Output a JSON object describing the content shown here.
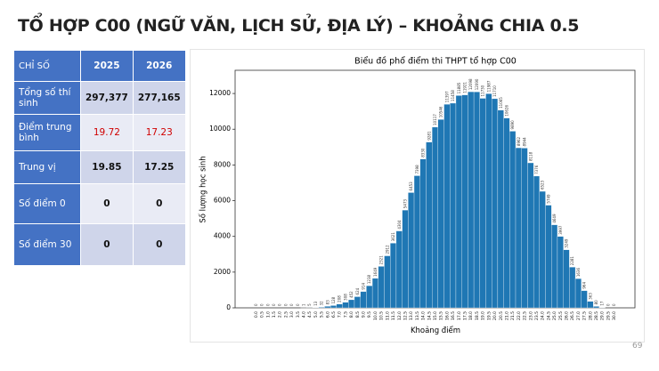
{
  "title": "TỔ HỢP C00 (NGỮ VĂN, LỊCH SỬ, ĐỊA LÝ) – KHOẢNG CHIA 0.5",
  "table": {
    "header": [
      "CHỈ SỐ",
      "2025",
      "2026"
    ],
    "rows": [
      [
        "Tổng số thí sinh",
        "297,377",
        "277,165"
      ],
      [
        "Điểm trung bình",
        "19.72",
        "17.23"
      ],
      [
        "Trung vị",
        "19.85",
        "17.25"
      ],
      [
        "Số điểm 0",
        "0",
        "0"
      ],
      [
        "Số điểm 30",
        "0",
        "0"
      ]
    ]
  },
  "chart_data": {
    "type": "bar",
    "title": "Biểu đồ phổ điểm thi THPT tổ hợp C00",
    "x_label": "Khoảng điểm",
    "y_label": "Số lượng học sinh",
    "categories": [
      "0.0",
      "0.5",
      "1.0",
      "1.5",
      "2.0",
      "2.5",
      "3.0",
      "3.5",
      "4.0",
      "4.5",
      "5.0",
      "5.5",
      "6.0",
      "6.5",
      "7.0",
      "7.5",
      "8.0",
      "8.5",
      "9.0",
      "9.5",
      "10.0",
      "10.5",
      "11.0",
      "11.5",
      "12.0",
      "12.5",
      "13.0",
      "13.5",
      "14.0",
      "14.5",
      "15.0",
      "15.5",
      "16.0",
      "16.5",
      "17.0",
      "17.5",
      "18.0",
      "18.5",
      "19.0",
      "19.5",
      "20.0",
      "20.5",
      "21.0",
      "21.5",
      "22.0",
      "22.5",
      "23.0",
      "23.5",
      "24.0",
      "24.5",
      "25.0",
      "25.5",
      "26.0",
      "26.5",
      "27.0",
      "27.5",
      "28.0",
      "28.5",
      "29.0",
      "29.5",
      "30.0"
    ],
    "values": [
      0,
      0,
      0,
      0,
      0,
      0,
      0,
      0,
      1,
      5,
      13,
      32,
      83,
      128,
      208,
      308,
      452,
      624,
      914,
      1238,
      1649,
      2321,
      2912,
      3621,
      4304,
      5473,
      6453,
      7398,
      8330,
      9281,
      10117,
      10546,
      11397,
      11458,
      11885,
      11921,
      12098,
      12090,
      11730,
      11987,
      11710,
      11065,
      10626,
      9890,
      8962,
      8944,
      8118,
      7376,
      6523,
      5749,
      4649,
      3997,
      3249,
      2281,
      1636,
      964,
      363,
      80,
      17,
      0,
      0
    ],
    "color": "#1f77b4",
    "ylim": [
      0,
      13300
    ],
    "yticks": [
      0,
      2000,
      4000,
      6000,
      8000,
      10000,
      12000
    ]
  },
  "page_number": "69"
}
